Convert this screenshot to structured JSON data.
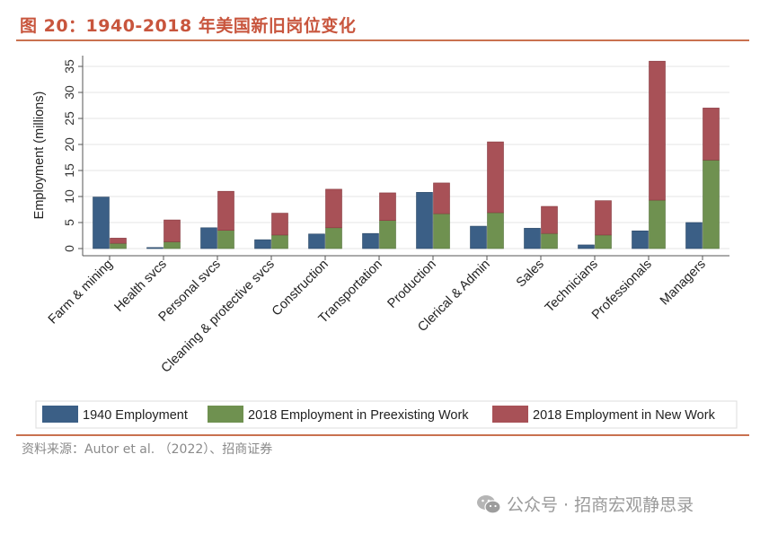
{
  "header": {
    "title": "图 20：1940-2018 年美国新旧岗位变化"
  },
  "footer": {
    "source": "资料来源：Autor et al. （2022）、招商证券",
    "watermark": "公众号 · 招商宏观静思录",
    "watermark_icon": "wechat-icon"
  },
  "colors": {
    "title": "#c8553d",
    "rule": "#c9714f",
    "s1940": "#3b5f86",
    "preexisting": "#6f9150",
    "newwork": "#a85157"
  },
  "chart_data": {
    "type": "bar",
    "title": "",
    "xlabel": "",
    "ylabel": "Employment (millions)",
    "ylim": [
      0,
      37
    ],
    "yticks": [
      0,
      5,
      10,
      15,
      20,
      25,
      30,
      35
    ],
    "grid": true,
    "legend_position": "bottom",
    "categories": [
      "Farm & mining",
      "Health svcs",
      "Personal svcs",
      "Cleaning & protective svcs",
      "Construction",
      "Transportation",
      "Production",
      "Clerical & Admin",
      "Sales",
      "Technicians",
      "Professionals",
      "Managers"
    ],
    "series": [
      {
        "name": "1940 Employment",
        "stack": "1940",
        "values": [
          9.9,
          0.2,
          4.0,
          1.7,
          2.8,
          2.9,
          10.8,
          4.3,
          3.9,
          0.7,
          3.4,
          5.0
        ]
      },
      {
        "name": "2018 Employment in Preexisting Work",
        "stack": "2018",
        "values": [
          1.0,
          1.3,
          3.5,
          2.6,
          4.0,
          5.4,
          6.7,
          6.9,
          2.9,
          2.6,
          9.3,
          17.0
        ]
      },
      {
        "name": "2018 Employment in New Work",
        "stack": "2018",
        "values": [
          1.0,
          4.2,
          7.5,
          4.2,
          7.4,
          5.3,
          5.9,
          13.6,
          5.2,
          6.6,
          26.7,
          10.0
        ]
      }
    ]
  }
}
